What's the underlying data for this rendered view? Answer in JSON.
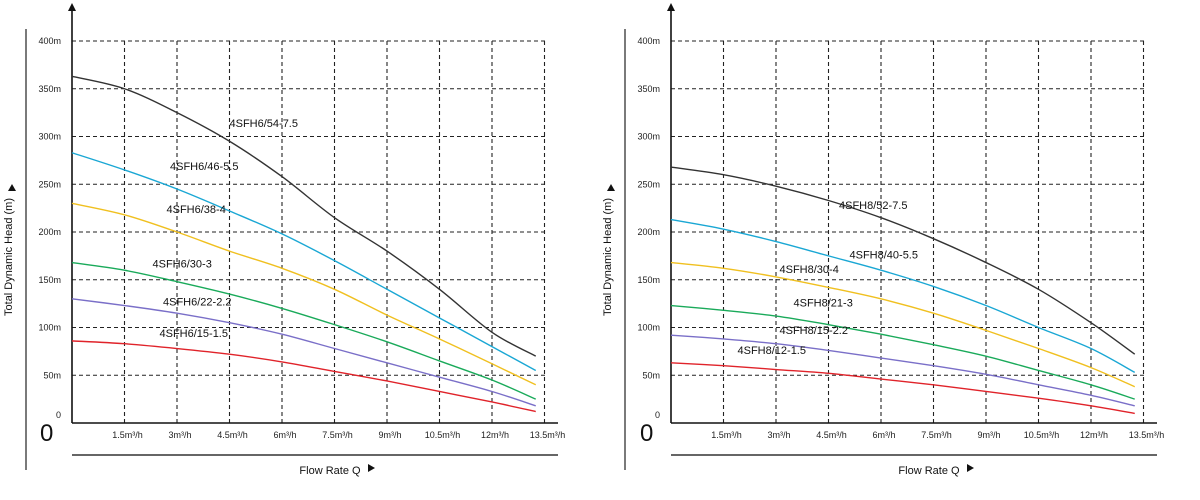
{
  "chart_data": [
    {
      "type": "line",
      "title": "",
      "xlabel": "Flow Rate Q",
      "ylabel": "Total Dynamic Head (m)",
      "origin_label": "0",
      "xlim": [
        0,
        14.25
      ],
      "ylim": [
        0,
        400
      ],
      "grid": true,
      "x_ticks": [
        1.5,
        3,
        4.5,
        6,
        7.5,
        9,
        10.5,
        12,
        13.5
      ],
      "x_tick_labels": [
        "1.5m³/h",
        "3m³/h",
        "4.5m³/h",
        "6m³/h",
        "7.5m³/h",
        "9m³/h",
        "10.5m³/h",
        "12m³/h",
        "13.5m³/h"
      ],
      "y_ticks": [
        0,
        50,
        100,
        150,
        200,
        250,
        300,
        350,
        400
      ],
      "y_tick_labels": [
        "0",
        "50m",
        "100m",
        "150m",
        "200m",
        "250m",
        "300m",
        "350m",
        "400m"
      ],
      "x": [
        0,
        1.5,
        3,
        4.5,
        6,
        7.5,
        9,
        10.5,
        12,
        13.25
      ],
      "series": [
        {
          "name": "4SFH6/54-7.5",
          "color": "#333333",
          "label_at": [
            4.5,
            310
          ],
          "values": [
            363,
            350,
            325,
            295,
            258,
            215,
            180,
            140,
            95,
            70
          ]
        },
        {
          "name": "4SFH6/46-5.5",
          "color": "#1aa7d4",
          "label_at": [
            2.8,
            265
          ],
          "values": [
            283,
            265,
            245,
            222,
            198,
            170,
            140,
            110,
            80,
            55
          ]
        },
        {
          "name": "4SFH6/38-4",
          "color": "#f0c020",
          "label_at": [
            2.7,
            220
          ],
          "values": [
            230,
            218,
            200,
            180,
            162,
            140,
            113,
            88,
            62,
            40
          ]
        },
        {
          "name": "4SFH6/30-3",
          "color": "#1aaa5a",
          "label_at": [
            2.3,
            163
          ],
          "values": [
            168,
            160,
            148,
            135,
            120,
            103,
            85,
            65,
            45,
            25
          ]
        },
        {
          "name": "4SFH6/22-2.2",
          "color": "#7a6fc8",
          "label_at": [
            2.6,
            123
          ],
          "values": [
            130,
            123,
            115,
            105,
            93,
            78,
            63,
            48,
            33,
            18
          ]
        },
        {
          "name": "4SFH6/15-1.5",
          "color": "#e0232a",
          "label_at": [
            2.5,
            90
          ],
          "values": [
            86,
            83,
            78,
            72,
            64,
            54,
            44,
            33,
            22,
            12
          ]
        }
      ]
    },
    {
      "type": "line",
      "title": "",
      "xlabel": "Flow Rate Q",
      "ylabel": "Total Dynamic Head (m)",
      "origin_label": "0",
      "xlim": [
        0,
        14.25
      ],
      "ylim": [
        0,
        400
      ],
      "grid": true,
      "x_ticks": [
        1.5,
        3,
        4.5,
        6,
        7.5,
        9,
        10.5,
        12,
        13.5
      ],
      "x_tick_labels": [
        "1.5m³/h",
        "3m³/h",
        "4.5m³/h",
        "6m³/h",
        "7.5m³/h",
        "9m³/h",
        "10.5m³/h",
        "12m³/h",
        "13.5m³/h"
      ],
      "y_ticks": [
        0,
        50,
        100,
        150,
        200,
        250,
        300,
        350,
        400
      ],
      "y_tick_labels": [
        "0",
        "50m",
        "100m",
        "150m",
        "200m",
        "250m",
        "300m",
        "350m",
        "400m"
      ],
      "x": [
        0,
        1.5,
        3,
        4.5,
        6,
        7.5,
        9,
        10.5,
        12,
        13.25
      ],
      "series": [
        {
          "name": "4SFH8/52-7.5",
          "color": "#333333",
          "label_at": [
            4.8,
            224
          ],
          "values": [
            268,
            260,
            248,
            233,
            215,
            193,
            168,
            140,
            105,
            72
          ]
        },
        {
          "name": "4SFH8/40-5.5",
          "color": "#1aa7d4",
          "label_at": [
            5.1,
            172
          ],
          "values": [
            213,
            203,
            190,
            175,
            160,
            143,
            123,
            100,
            78,
            53
          ]
        },
        {
          "name": "4SFH8/30-4",
          "color": "#f0c020",
          "label_at": [
            3.1,
            157
          ],
          "values": [
            168,
            162,
            153,
            142,
            130,
            115,
            97,
            78,
            58,
            38
          ]
        },
        {
          "name": "4SFH8/21-3",
          "color": "#1aaa5a",
          "label_at": [
            3.5,
            122
          ],
          "values": [
            123,
            118,
            112,
            103,
            93,
            82,
            70,
            55,
            40,
            25
          ]
        },
        {
          "name": "4SFH8/15-2.2",
          "color": "#7a6fc8",
          "label_at": [
            3.1,
            93
          ],
          "values": [
            92,
            88,
            83,
            76,
            68,
            60,
            51,
            40,
            29,
            18
          ]
        },
        {
          "name": "4SFH8/12-1.5",
          "color": "#e0232a",
          "label_at": [
            1.9,
            72
          ],
          "values": [
            63,
            60,
            56,
            52,
            46,
            40,
            33,
            26,
            18,
            10
          ]
        }
      ]
    }
  ]
}
